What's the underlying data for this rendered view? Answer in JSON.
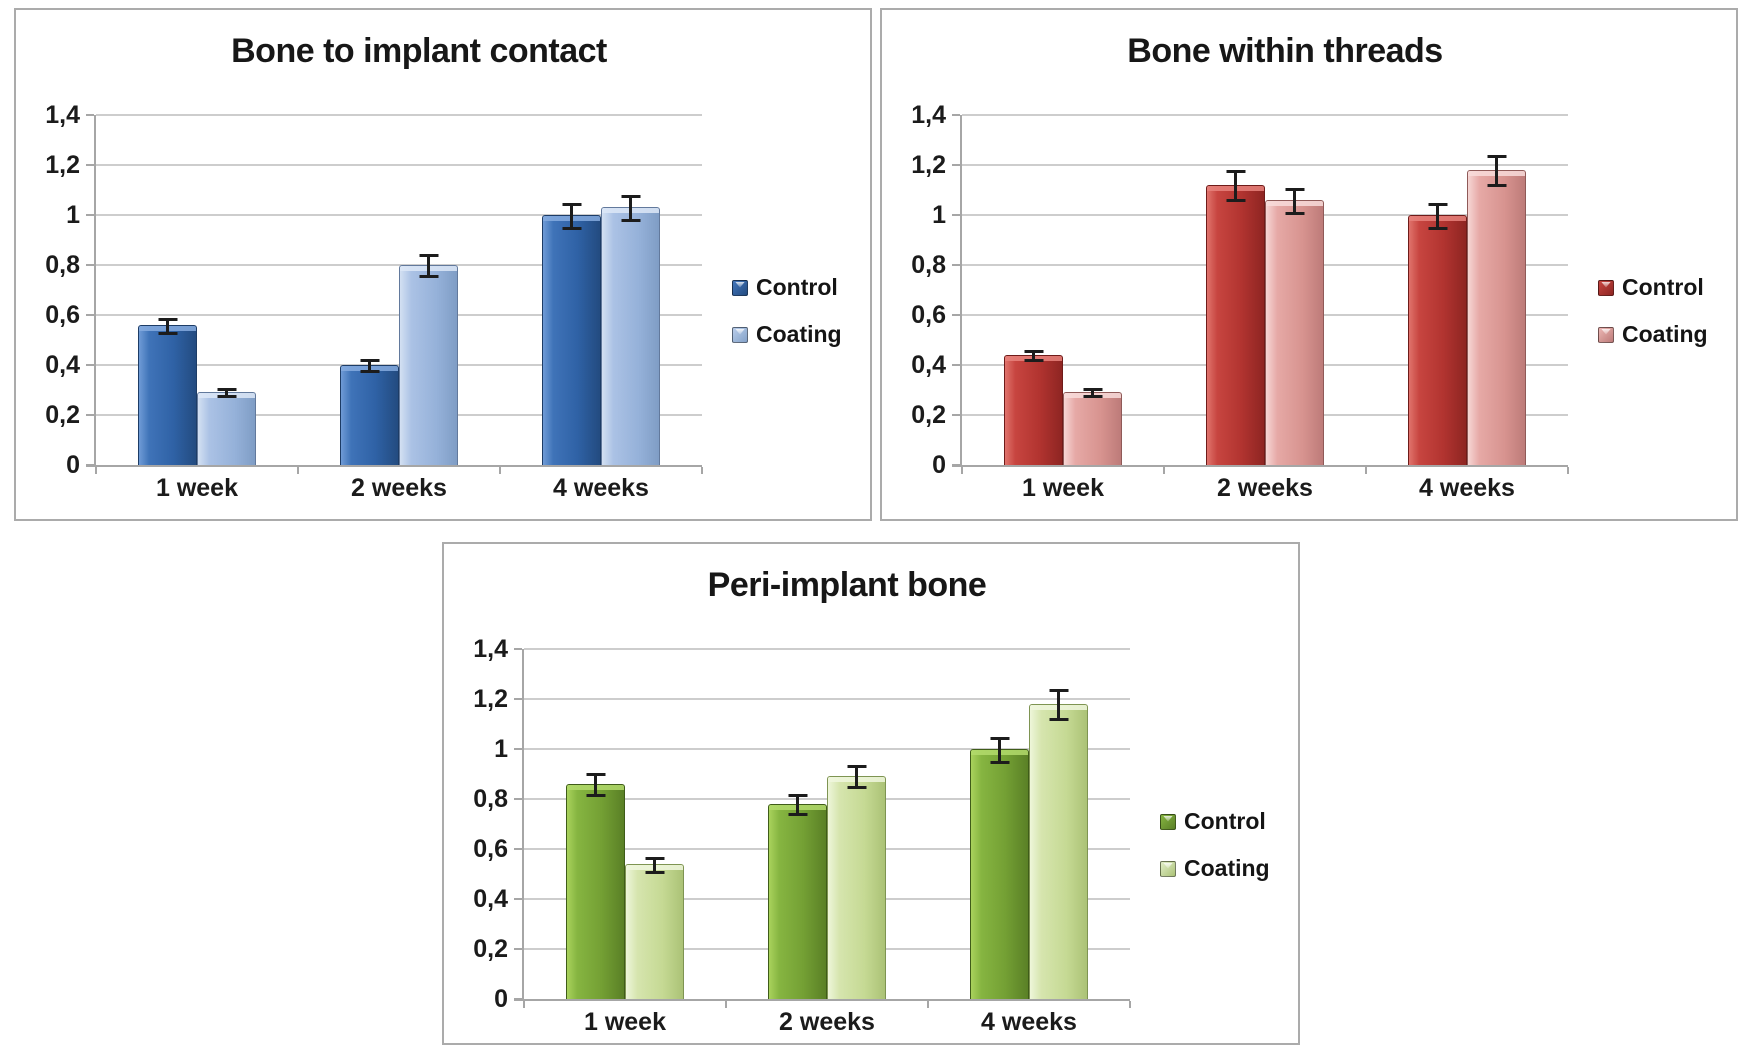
{
  "chart_data": [
    {
      "type": "bar",
      "title": "Bone to implant contact",
      "categories": [
        "1 week",
        "2 weeks",
        "4 weeks"
      ],
      "series": [
        {
          "name": "Control",
          "color": "#2E5B9F",
          "values": [
            0.56,
            0.4,
            1.0
          ],
          "errors": [
            0.03,
            0.025,
            0.05
          ]
        },
        {
          "name": "Coating",
          "color": "#95B3D7",
          "values": [
            0.29,
            0.8,
            1.03
          ],
          "errors": [
            0.015,
            0.045,
            0.05
          ]
        }
      ],
      "ylim": [
        0,
        1.4
      ],
      "y_tick_labels_top_to_bottom": [
        "1,4",
        "1,2",
        "1",
        "0,8",
        "0,6",
        "0,4",
        "0,2",
        "0"
      ],
      "grid": true,
      "error_bars": true,
      "legend_position": "right",
      "legend": [
        "Control",
        "Coating"
      ]
    },
    {
      "type": "bar",
      "title": "Bone within threads",
      "categories": [
        "1 week",
        "2 weeks",
        "4 weeks"
      ],
      "series": [
        {
          "name": "Control",
          "color": "#B23430",
          "values": [
            0.44,
            1.12,
            1.0
          ],
          "errors": [
            0.02,
            0.06,
            0.05
          ]
        },
        {
          "name": "Coating",
          "color": "#D99694",
          "values": [
            0.29,
            1.06,
            1.18
          ],
          "errors": [
            0.015,
            0.05,
            0.06
          ]
        }
      ],
      "ylim": [
        0,
        1.4
      ],
      "y_tick_labels_top_to_bottom": [
        "1,4",
        "1,2",
        "1",
        "0,8",
        "0,6",
        "0,4",
        "0,2",
        "0"
      ],
      "grid": true,
      "error_bars": true,
      "legend_position": "right",
      "legend": [
        "Control",
        "Coating"
      ]
    },
    {
      "type": "bar",
      "title": "Peri-implant bone",
      "categories": [
        "1 week",
        "2 weeks",
        "4 weeks"
      ],
      "series": [
        {
          "name": "Control",
          "color": "#77A033",
          "values": [
            0.86,
            0.78,
            1.0
          ],
          "errors": [
            0.045,
            0.04,
            0.05
          ]
        },
        {
          "name": "Coating",
          "color": "#C3D69B",
          "values": [
            0.54,
            0.89,
            1.18
          ],
          "errors": [
            0.03,
            0.045,
            0.06
          ]
        }
      ],
      "ylim": [
        0,
        1.4
      ],
      "y_tick_labels_top_to_bottom": [
        "1,4",
        "1,2",
        "1",
        "0,8",
        "0,6",
        "0,4",
        "0,2",
        "0"
      ],
      "grid": true,
      "error_bars": true,
      "legend_position": "right",
      "legend": [
        "Control",
        "Coating"
      ]
    }
  ]
}
